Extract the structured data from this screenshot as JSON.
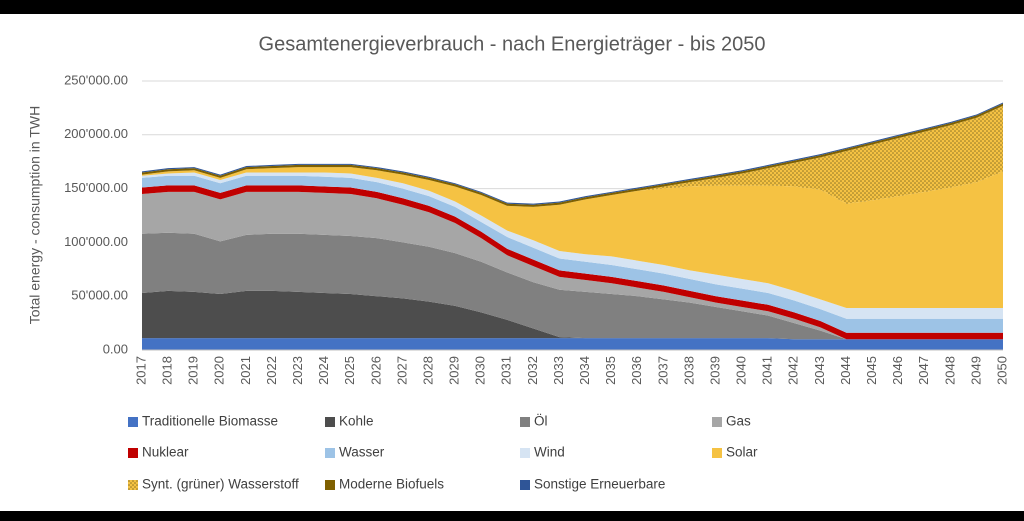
{
  "chart_data": {
    "type": "stacked-area",
    "title": "Gesamtenergieverbrauch - nach Energieträger - bis 2050",
    "y_label": "Total energy - consumption in TWH",
    "categories": [
      "2017",
      "2018",
      "2019",
      "2020",
      "2021",
      "2022",
      "2023",
      "2024",
      "2025",
      "2026",
      "2027",
      "2028",
      "2029",
      "2030",
      "2031",
      "2032",
      "2033",
      "2034",
      "2035",
      "2036",
      "2037",
      "2038",
      "2039",
      "2040",
      "2041",
      "2042",
      "2043",
      "2044",
      "2045",
      "2046",
      "2047",
      "2048",
      "2049",
      "2050"
    ],
    "ylim": [
      0,
      250000
    ],
    "yticks": [
      {
        "value": 0,
        "label": "0.00"
      },
      {
        "value": 50000,
        "label": "50'000.00"
      },
      {
        "value": 100000,
        "label": "100'000.00"
      },
      {
        "value": 150000,
        "label": "150'000.00"
      },
      {
        "value": 200000,
        "label": "200'000.00"
      },
      {
        "value": 250000,
        "label": "250'000.00"
      }
    ],
    "grid": true,
    "legend": "bottom",
    "series": [
      {
        "name": "Traditionelle Biomasse",
        "color": "#4472c4",
        "values": [
          11000,
          11000,
          11000,
          11000,
          11000,
          11000,
          11000,
          11000,
          11000,
          11000,
          11000,
          11000,
          11000,
          11000,
          11000,
          11000,
          11000,
          11000,
          11000,
          11000,
          11000,
          11000,
          11000,
          11000,
          11000,
          10000,
          10000,
          10000,
          10000,
          10000,
          10000,
          10000,
          10000,
          10000
        ]
      },
      {
        "name": "Kohle",
        "color": "#4d4d4d",
        "values": [
          42000,
          44000,
          43000,
          41000,
          44000,
          44000,
          43000,
          42000,
          41000,
          39000,
          37000,
          34000,
          30000,
          24000,
          17000,
          9000,
          1000,
          0,
          0,
          0,
          0,
          0,
          0,
          0,
          0,
          0,
          0,
          0,
          0,
          0,
          0,
          0,
          0,
          0
        ]
      },
      {
        "name": "Öl",
        "color": "#808080",
        "values": [
          55000,
          54000,
          54000,
          49000,
          52000,
          53000,
          54000,
          54000,
          54000,
          54000,
          52000,
          51000,
          49000,
          47000,
          44000,
          43000,
          44000,
          43000,
          41000,
          39000,
          36000,
          33000,
          29000,
          25000,
          21000,
          15000,
          8000,
          0,
          0,
          0,
          0,
          0,
          0,
          0
        ]
      },
      {
        "name": "Gas",
        "color": "#a6a6a6",
        "values": [
          37000,
          38000,
          39000,
          39000,
          40000,
          39000,
          39000,
          39000,
          39000,
          37000,
          35000,
          32000,
          28000,
          22000,
          16000,
          15000,
          12000,
          11000,
          10000,
          8000,
          7000,
          5000,
          4000,
          4000,
          4000,
          4000,
          3000,
          0,
          0,
          0,
          0,
          0,
          0,
          0
        ]
      },
      {
        "name": "Nuklear",
        "color": "#c00000",
        "values": [
          6000,
          6000,
          6000,
          6000,
          6000,
          6000,
          6000,
          6000,
          6000,
          6000,
          6000,
          6000,
          6000,
          6000,
          6000,
          6000,
          6000,
          6000,
          6000,
          6000,
          6000,
          6000,
          6000,
          6000,
          6000,
          6000,
          6000,
          6000,
          6000,
          6000,
          6000,
          6000,
          6000,
          6000
        ]
      },
      {
        "name": "Wasser",
        "color": "#9dc3e6",
        "values": [
          9000,
          9000,
          9000,
          9000,
          9000,
          9000,
          9000,
          9000,
          9000,
          9000,
          9000,
          9000,
          9000,
          9000,
          11000,
          11000,
          11000,
          11000,
          11000,
          11000,
          11000,
          11000,
          11000,
          11000,
          11000,
          11000,
          11000,
          13000,
          13000,
          13000,
          13000,
          13000,
          13000,
          13000
        ]
      },
      {
        "name": "Wind",
        "color": "#d6e4f3",
        "values": [
          2000,
          2000,
          3000,
          3000,
          3000,
          3000,
          3000,
          4000,
          4000,
          4000,
          5000,
          5000,
          5000,
          6000,
          6000,
          7000,
          7000,
          7000,
          8000,
          8000,
          8000,
          8000,
          9000,
          9000,
          9000,
          9000,
          9000,
          10000,
          10000,
          10000,
          10000,
          10000,
          10000,
          10000
        ]
      },
      {
        "name": "Solar",
        "color": "#f5c243",
        "values": [
          1000,
          2000,
          2000,
          2000,
          3000,
          4000,
          5000,
          5000,
          6000,
          7000,
          8000,
          10000,
          14000,
          19000,
          23000,
          31000,
          43000,
          51000,
          57000,
          65000,
          71000,
          78000,
          83000,
          87000,
          91000,
          97000,
          102000,
          97000,
          100000,
          104000,
          108000,
          112000,
          117000,
          127000
        ]
      },
      {
        "name": "Synt. (grüner) Wasserstoff",
        "color": "#8c7426",
        "values": [
          0,
          0,
          0,
          0,
          0,
          0,
          0,
          0,
          0,
          0,
          0,
          0,
          0,
          0,
          0,
          0,
          0,
          0,
          0,
          0,
          2000,
          4000,
          7000,
          11000,
          16000,
          22000,
          30000,
          49000,
          52000,
          54000,
          56000,
          58000,
          60000,
          61000
        ]
      },
      {
        "name": "Moderne Biofuels",
        "color": "#7f6000",
        "values": [
          2000,
          2000,
          2000,
          2000,
          2000,
          2000,
          2000,
          2000,
          2000,
          2000,
          2000,
          2000,
          2000,
          2000,
          2000,
          2000,
          2000,
          2000,
          2000,
          2000,
          2000,
          2000,
          2000,
          2000,
          2000,
          2000,
          2000,
          2000,
          2000,
          2000,
          2000,
          2000,
          2000,
          2000
        ]
      },
      {
        "name": "Sonstige Erneuerbare",
        "color": "#2f5597",
        "values": [
          1000,
          1000,
          1000,
          1000,
          1000,
          1000,
          1000,
          1000,
          1000,
          1000,
          1000,
          1000,
          1000,
          1000,
          1000,
          1000,
          1000,
          1000,
          1000,
          1000,
          1000,
          1000,
          1000,
          1000,
          1000,
          1000,
          1000,
          1000,
          1000,
          1000,
          1000,
          1000,
          1000,
          1000
        ]
      }
    ]
  }
}
